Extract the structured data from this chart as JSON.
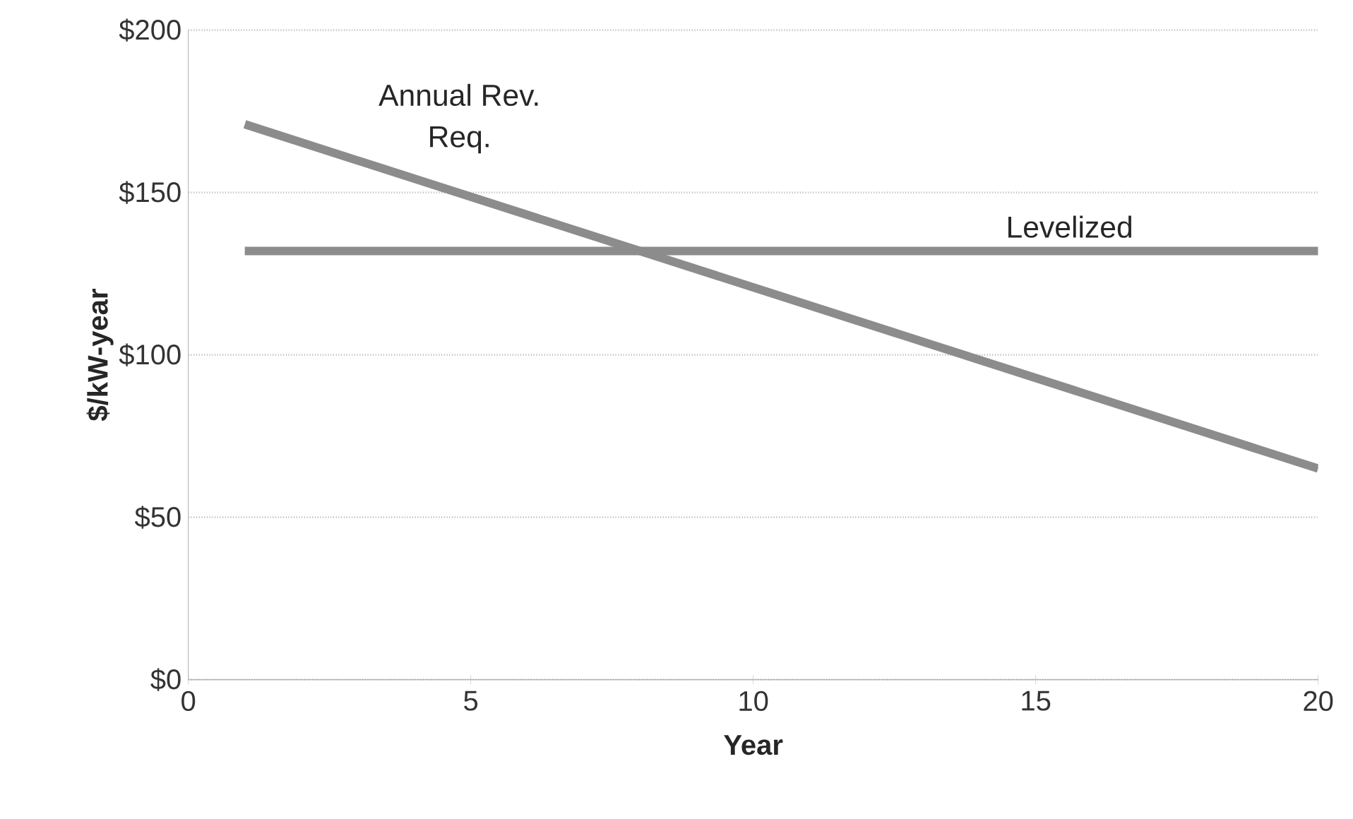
{
  "chart_data": {
    "type": "line",
    "xlabel": "Year",
    "ylabel": "$/kW-year",
    "xlim": [
      0,
      20
    ],
    "xticks": [
      0,
      5,
      10,
      15,
      20
    ],
    "ylim": [
      0,
      200
    ],
    "yticks": [
      {
        "value": 0,
        "label": "$0"
      },
      {
        "value": 50,
        "label": "$50"
      },
      {
        "value": 100,
        "label": "$100"
      },
      {
        "value": 150,
        "label": "$150"
      },
      {
        "value": 200,
        "label": "$200"
      }
    ],
    "grid": "y",
    "legend": false,
    "marker": "none",
    "line_style": "solid",
    "x": [
      1,
      20
    ],
    "series": [
      {
        "name": "Annual Rev. Req.",
        "color": "#8c8c8c",
        "values": [
          171,
          65
        ]
      },
      {
        "name": "Levelized",
        "color": "#8c8c8c",
        "values": [
          132,
          132
        ]
      }
    ]
  }
}
